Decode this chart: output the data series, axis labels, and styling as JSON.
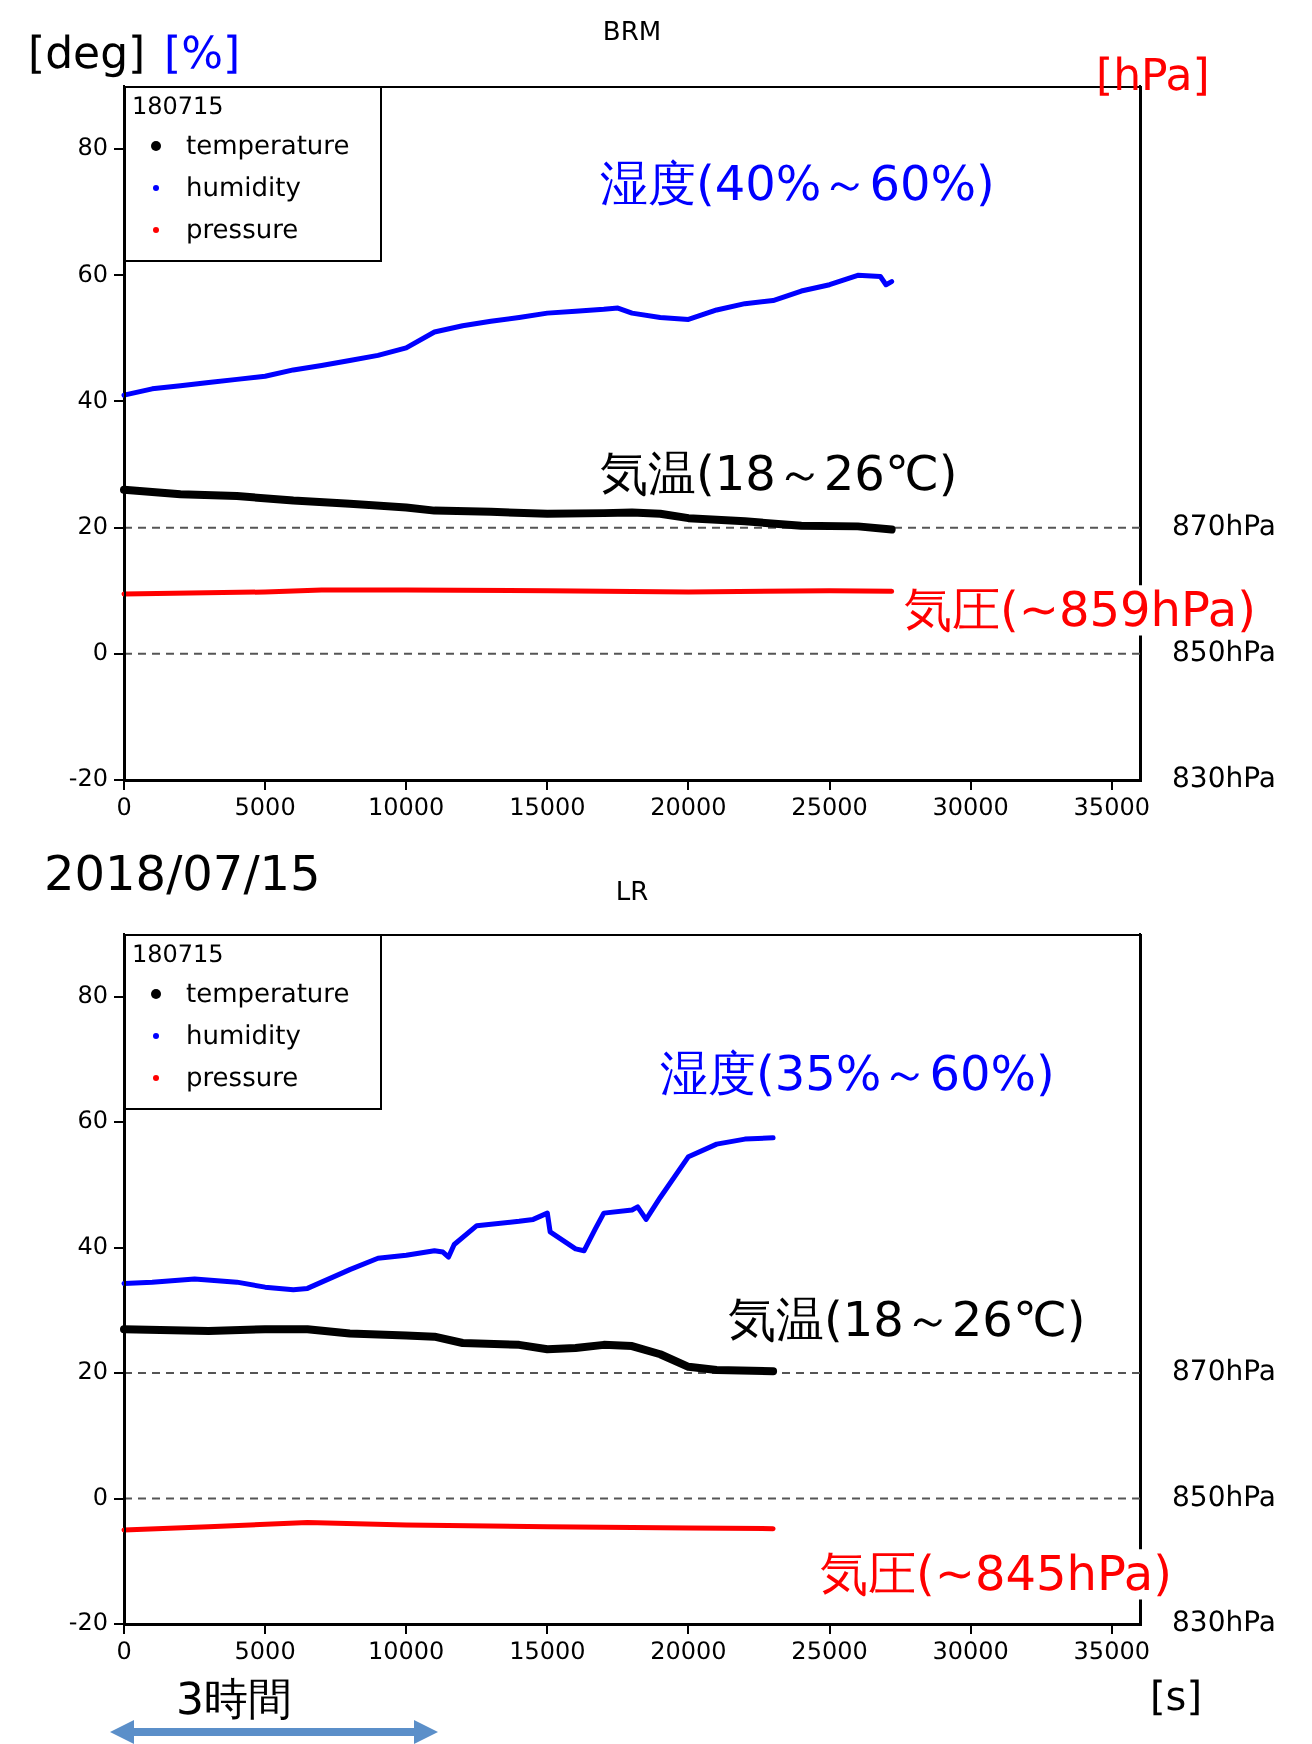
{
  "chart_data": [
    {
      "type": "line",
      "title": "BRM",
      "ylabel": "[deg]",
      "y2label": "[hPa]",
      "legend": "top left",
      "legend_title": "180715",
      "line_style": "solid",
      "annotations": [
        "[%]",
        "湿度(40%～60%)",
        "気温(18～26℃)",
        "気圧(~859hPa)"
      ],
      "xlim": [
        0,
        36000
      ],
      "xticks": [
        0,
        5000,
        10000,
        15000,
        20000,
        25000,
        30000,
        35000
      ],
      "ylim": [
        -20,
        90
      ],
      "yticks": [
        -20,
        0,
        20,
        40,
        60,
        80
      ],
      "y2lim": [
        830,
        940
      ],
      "y2ticks": [
        {
          "value": 830,
          "label": "830hPa"
        },
        {
          "value": 850,
          "label": "850hPa"
        },
        {
          "value": 870,
          "label": "870hPa"
        }
      ],
      "ref_lines": [
        {
          "axis": "y2",
          "value": 870,
          "color": "#555555",
          "line_style": "dashed"
        },
        {
          "axis": "y2",
          "value": 850,
          "color": "#555555",
          "line_style": "dashed"
        }
      ],
      "series": [
        {
          "name": "temperature",
          "color": "#000000",
          "x": [
            0,
            2000,
            4000,
            6000,
            8000,
            10000,
            11000,
            13000,
            15000,
            17000,
            18000,
            19000,
            20000,
            22000,
            24000,
            26000,
            27200
          ],
          "values": [
            26,
            25.3,
            25,
            24.3,
            23.8,
            23.2,
            22.7,
            22.5,
            22.2,
            22.3,
            22.4,
            22.2,
            21.5,
            21,
            20.3,
            20.2,
            19.7
          ]
        },
        {
          "name": "humidity",
          "color": "#0000ff",
          "x": [
            0,
            1000,
            2000,
            3000,
            4000,
            5000,
            6000,
            7000,
            8000,
            9000,
            10000,
            11000,
            12000,
            13000,
            14000,
            15000,
            16000,
            17000,
            17500,
            18000,
            19000,
            20000,
            21000,
            22000,
            23000,
            24000,
            25000,
            26000,
            26800,
            27000,
            27200
          ],
          "values": [
            41,
            42,
            42.5,
            43,
            43.5,
            44,
            45,
            45.7,
            46.5,
            47.3,
            48.5,
            51,
            52,
            52.7,
            53.3,
            54,
            54.3,
            54.6,
            54.8,
            54,
            53.3,
            53,
            54.5,
            55.5,
            56,
            57.5,
            58.5,
            60,
            59.8,
            58.5,
            59
          ]
        },
        {
          "name": "pressure",
          "color": "#ff0000",
          "axis": "y2",
          "x": [
            0,
            5000,
            7000,
            10000,
            15000,
            20000,
            25000,
            27200
          ],
          "values": [
            859.5,
            859.8,
            860.1,
            860.1,
            860,
            859.8,
            860,
            859.9
          ]
        }
      ]
    },
    {
      "type": "line",
      "title": "LR",
      "xlabel": "[s]",
      "legend": "top left",
      "legend_title": "180715",
      "line_style": "solid",
      "annotations": [
        "2018/07/15",
        "湿度(35%～60%)",
        "気温(18～26℃)",
        "気圧(~845hPa)",
        "3時間"
      ],
      "xlim": [
        0,
        36000
      ],
      "xticks": [
        0,
        5000,
        10000,
        15000,
        20000,
        25000,
        30000,
        35000
      ],
      "ylim": [
        -20,
        90
      ],
      "yticks": [
        -20,
        0,
        20,
        40,
        60,
        80
      ],
      "y2lim": [
        830,
        940
      ],
      "y2ticks": [
        {
          "value": 830,
          "label": "830hPa"
        },
        {
          "value": 850,
          "label": "850hPa"
        },
        {
          "value": 870,
          "label": "870hPa"
        }
      ],
      "ref_lines": [
        {
          "axis": "y2",
          "value": 870,
          "color": "#555555",
          "line_style": "dashed"
        },
        {
          "axis": "y2",
          "value": 850,
          "color": "#555555",
          "line_style": "dashed"
        }
      ],
      "series": [
        {
          "name": "temperature",
          "color": "#000000",
          "x": [
            0,
            3000,
            5000,
            6500,
            8000,
            10000,
            11000,
            12000,
            14000,
            15000,
            16000,
            17000,
            18000,
            19000,
            20000,
            21000,
            23000
          ],
          "values": [
            27,
            26.7,
            27,
            27,
            26.3,
            26,
            25.8,
            24.8,
            24.5,
            23.8,
            24,
            24.5,
            24.3,
            23,
            21,
            20.5,
            20.3
          ]
        },
        {
          "name": "humidity",
          "color": "#0000ff",
          "x": [
            0,
            1000,
            2500,
            4000,
            5000,
            6000,
            6500,
            7000,
            8000,
            9000,
            10000,
            11000,
            11300,
            11500,
            11700,
            12500,
            14000,
            14500,
            15000,
            15100,
            16000,
            16300,
            16700,
            17000,
            18000,
            18200,
            18500,
            19000,
            20000,
            21000,
            22000,
            23000
          ],
          "values": [
            34.3,
            34.5,
            35,
            34.5,
            33.7,
            33.3,
            33.5,
            34.5,
            36.5,
            38.3,
            38.8,
            39.5,
            39.3,
            38.5,
            40.5,
            43.5,
            44.2,
            44.5,
            45.5,
            42.5,
            39.8,
            39.5,
            43,
            45.5,
            46,
            46.5,
            44.5,
            48,
            54.5,
            56.5,
            57.3,
            57.5
          ]
        },
        {
          "name": "pressure",
          "color": "#ff0000",
          "axis": "y2",
          "x": [
            0,
            3000,
            6500,
            10000,
            15000,
            20000,
            23000
          ],
          "values": [
            845,
            845.5,
            846.2,
            845.8,
            845.5,
            845.3,
            845.2
          ]
        }
      ]
    }
  ]
}
